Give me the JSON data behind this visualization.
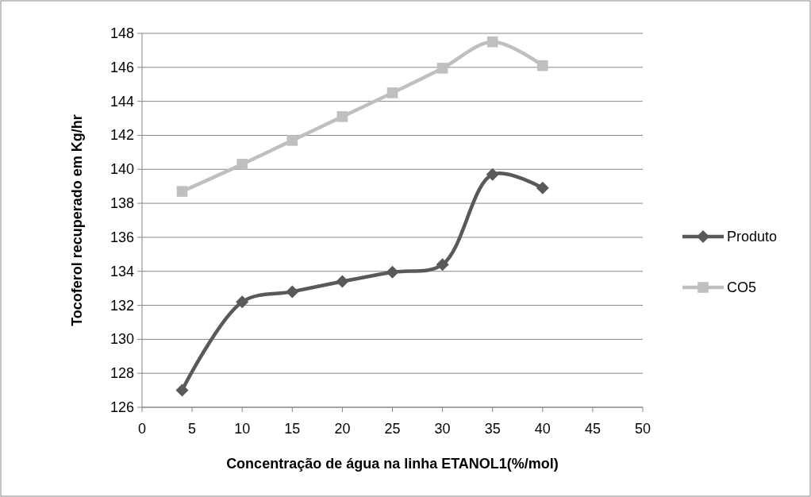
{
  "chart_data": {
    "type": "line",
    "xlabel": "Concentração de água na linha ETANOL1(%/mol)",
    "ylabel": "Tocoferol recuperado em Kg/hr",
    "x": [
      4,
      10,
      15,
      20,
      25,
      30,
      35,
      40
    ],
    "series": [
      {
        "name": "Produto",
        "color": "#595959",
        "marker": "diamond",
        "values": [
          127.0,
          132.2,
          132.8,
          133.4,
          133.95,
          134.4,
          139.7,
          138.9
        ]
      },
      {
        "name": "CO5",
        "color": "#bfbfbf",
        "marker": "square",
        "values": [
          138.7,
          140.3,
          141.7,
          143.1,
          144.5,
          145.95,
          147.5,
          146.1
        ]
      }
    ],
    "xlim": [
      0,
      50
    ],
    "xticks": [
      0,
      5,
      10,
      15,
      20,
      25,
      30,
      35,
      40,
      45,
      50
    ],
    "ylim": [
      126,
      148
    ],
    "yticks": [
      126,
      128,
      130,
      132,
      134,
      136,
      138,
      140,
      142,
      144,
      146,
      148
    ],
    "grid": "y",
    "legend": "right"
  }
}
